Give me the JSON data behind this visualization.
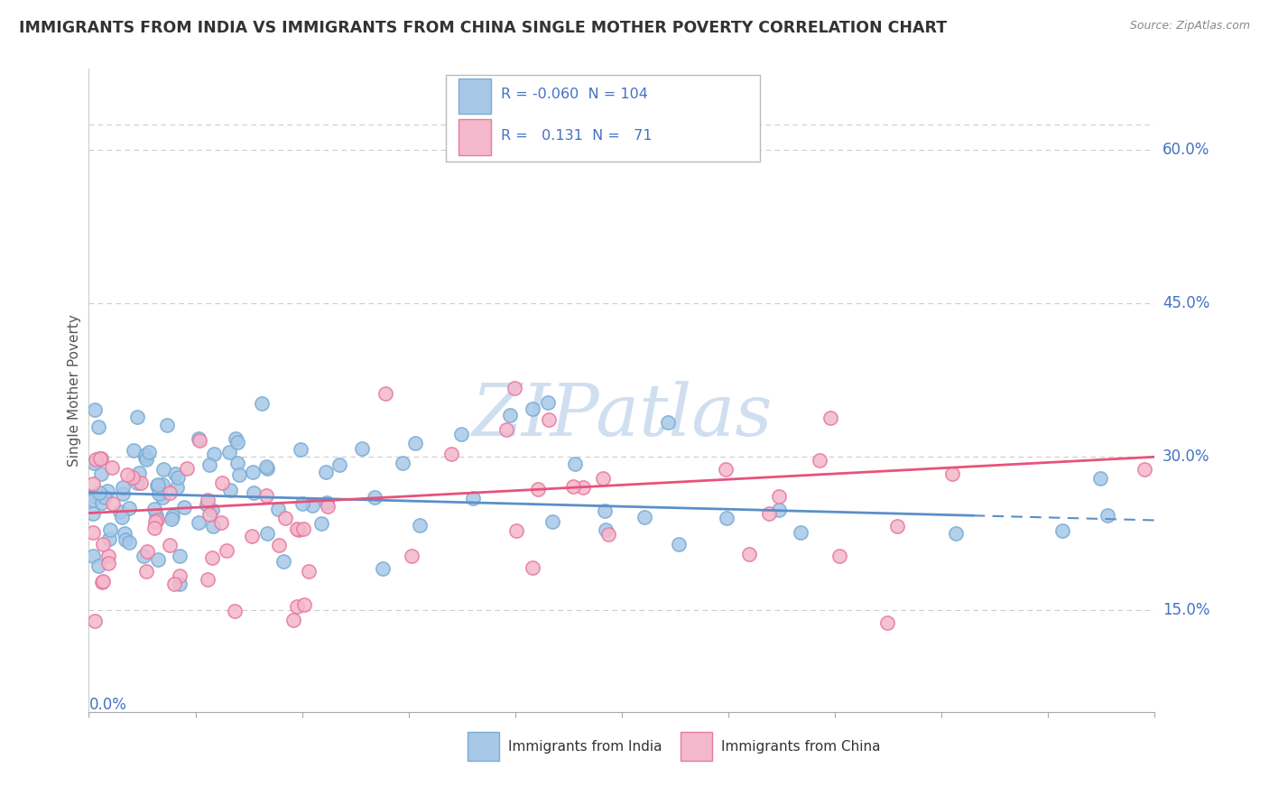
{
  "title": "IMMIGRANTS FROM INDIA VS IMMIGRANTS FROM CHINA SINGLE MOTHER POVERTY CORRELATION CHART",
  "source": "Source: ZipAtlas.com",
  "ylabel": "Single Mother Poverty",
  "ytick_vals": [
    0.15,
    0.3,
    0.45,
    0.6
  ],
  "ytick_labels": [
    "15.0%",
    "30.0%",
    "45.0%",
    "60.0%"
  ],
  "xlim": [
    0.0,
    0.5
  ],
  "ylim": [
    0.05,
    0.68
  ],
  "legend_india_R": "-0.060",
  "legend_india_N": "104",
  "legend_china_R": "0.131",
  "legend_china_N": "71",
  "india_face_color": "#a8c8e8",
  "india_edge_color": "#7aadd4",
  "china_face_color": "#f4b8cc",
  "china_edge_color": "#e87aa0",
  "india_line_color": "#5b8fc9",
  "china_line_color": "#e8527a",
  "text_color": "#4472c4",
  "legend_text_color": "#4472c4",
  "title_color": "#333333",
  "source_color": "#888888",
  "ylabel_color": "#555555",
  "grid_color": "#cccccc",
  "background_color": "#ffffff",
  "watermark_text": "ZIPatlas",
  "watermark_color": "#d0dff0",
  "india_line_end_x": 0.42,
  "china_line_end_x": 0.5,
  "india_line_start_y": 0.265,
  "india_line_end_y": 0.238,
  "china_line_start_y": 0.245,
  "china_line_end_y": 0.3
}
